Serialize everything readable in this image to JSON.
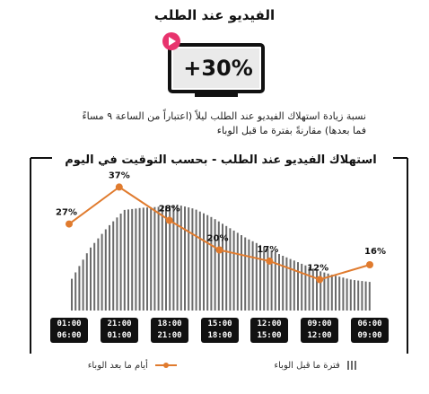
{
  "header": {
    "title": "الفيديو عند الطلب",
    "tv_value": "+30%",
    "caption_line1": "نسبة زيادة استهلاك الفيديو عند الطلب ليلاً (اعتباراً من الساعة ٩ مساءً",
    "caption_line2": "فما بعدها) مقارنةً بفترة ما قبل الوباء"
  },
  "colors": {
    "accent": "#e07b2e",
    "play": "#e8336d",
    "bars": "#6b6b6b",
    "tv_screen": "#eaeaea"
  },
  "chart_data": {
    "type": "line",
    "title": "استهلاك الفيديو عند الطلب - بحسب التوقيت في اليوم",
    "categories": [
      "06:00-01:00",
      "01:00-21:00",
      "21:00-18:00",
      "18:00-15:00",
      "15:00-12:00",
      "12:00-09:00",
      "09:00-06:00"
    ],
    "tick_labels": [
      {
        "top": "01:00",
        "bottom": "06:00"
      },
      {
        "top": "21:00",
        "bottom": "01:00"
      },
      {
        "top": "18:00",
        "bottom": "21:00"
      },
      {
        "top": "15:00",
        "bottom": "18:00"
      },
      {
        "top": "12:00",
        "bottom": "15:00"
      },
      {
        "top": "09:00",
        "bottom": "12:00"
      },
      {
        "top": "06:00",
        "bottom": "09:00"
      }
    ],
    "series": [
      {
        "name": "أيام ما بعد الوباء",
        "type": "line",
        "values": [
          27,
          37,
          28,
          20,
          17,
          12,
          16
        ],
        "labels": [
          "27%",
          "37%",
          "28%",
          "20%",
          "17%",
          "12%",
          "16%"
        ]
      }
    ],
    "pre_pandemic_profile": [
      0.3,
      0.58,
      0.78,
      0.95,
      0.97,
      0.98,
      1.0,
      0.96,
      0.88,
      0.78,
      0.68,
      0.6,
      0.52,
      0.45,
      0.38,
      0.33,
      0.29,
      0.27
    ],
    "legend": [
      {
        "label": "فترة ما قبل الوباء",
        "kind": "bars"
      },
      {
        "label": "أيام ما بعد الوباء",
        "kind": "line"
      }
    ],
    "grid": false,
    "legend_position": "bottom"
  }
}
